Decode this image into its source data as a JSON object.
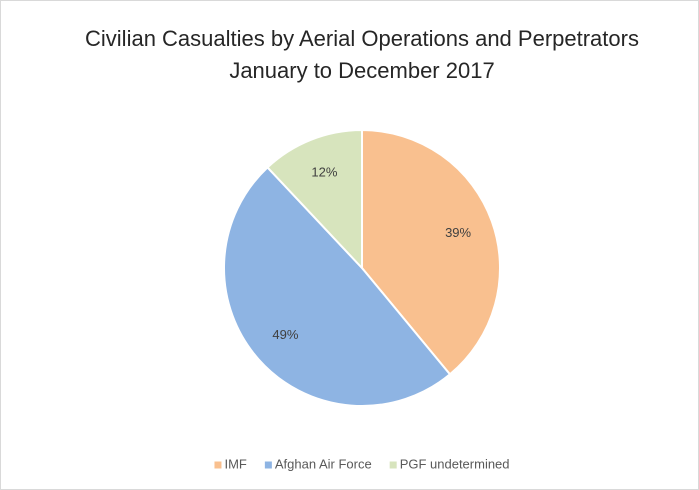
{
  "chart_data": {
    "type": "pie",
    "title": "Civilian Casualties by Aerial Operations and Perpetrators",
    "subtitle": "January to December 2017",
    "categories": [
      "IMF",
      "Afghan Air Force",
      "PGF undetermined"
    ],
    "values": [
      39,
      49,
      12
    ],
    "value_labels": [
      "39%",
      "49%",
      "12%"
    ],
    "colors": [
      "#f9c08f",
      "#8eb4e3",
      "#d7e4bd"
    ],
    "legend": "bottom"
  }
}
